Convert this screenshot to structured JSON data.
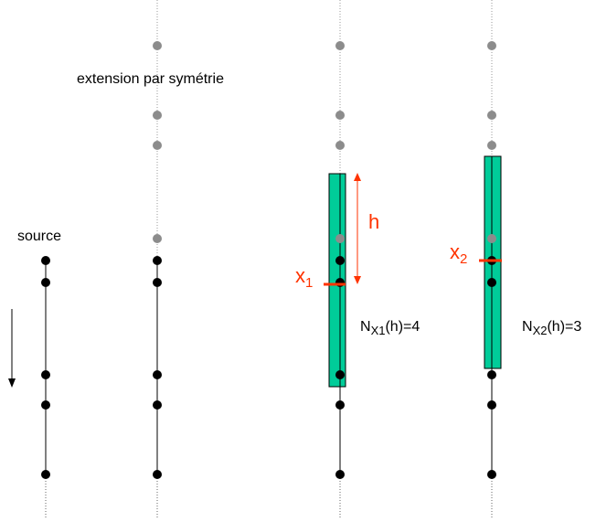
{
  "labels": {
    "extension": "extension par symétrie",
    "source": "source",
    "h": "h",
    "x1": "x",
    "x1_sub": "1",
    "x2": "x",
    "x2_sub": "2",
    "n1_prefix": "N",
    "n1_sub": "X1",
    "n1_suffix": "(h)=4",
    "n2_prefix": "N",
    "n2_sub": "X2",
    "n2_suffix": "(h)=3"
  },
  "colors": {
    "black_point": "#000000",
    "gray_point": "#8c8c8c",
    "window_fill": "#00cc99",
    "accent_red": "#ff3300",
    "line": "#000000",
    "dotted_line": "#999999"
  },
  "icons": {
    "direction": "down-arrow-icon"
  }
}
